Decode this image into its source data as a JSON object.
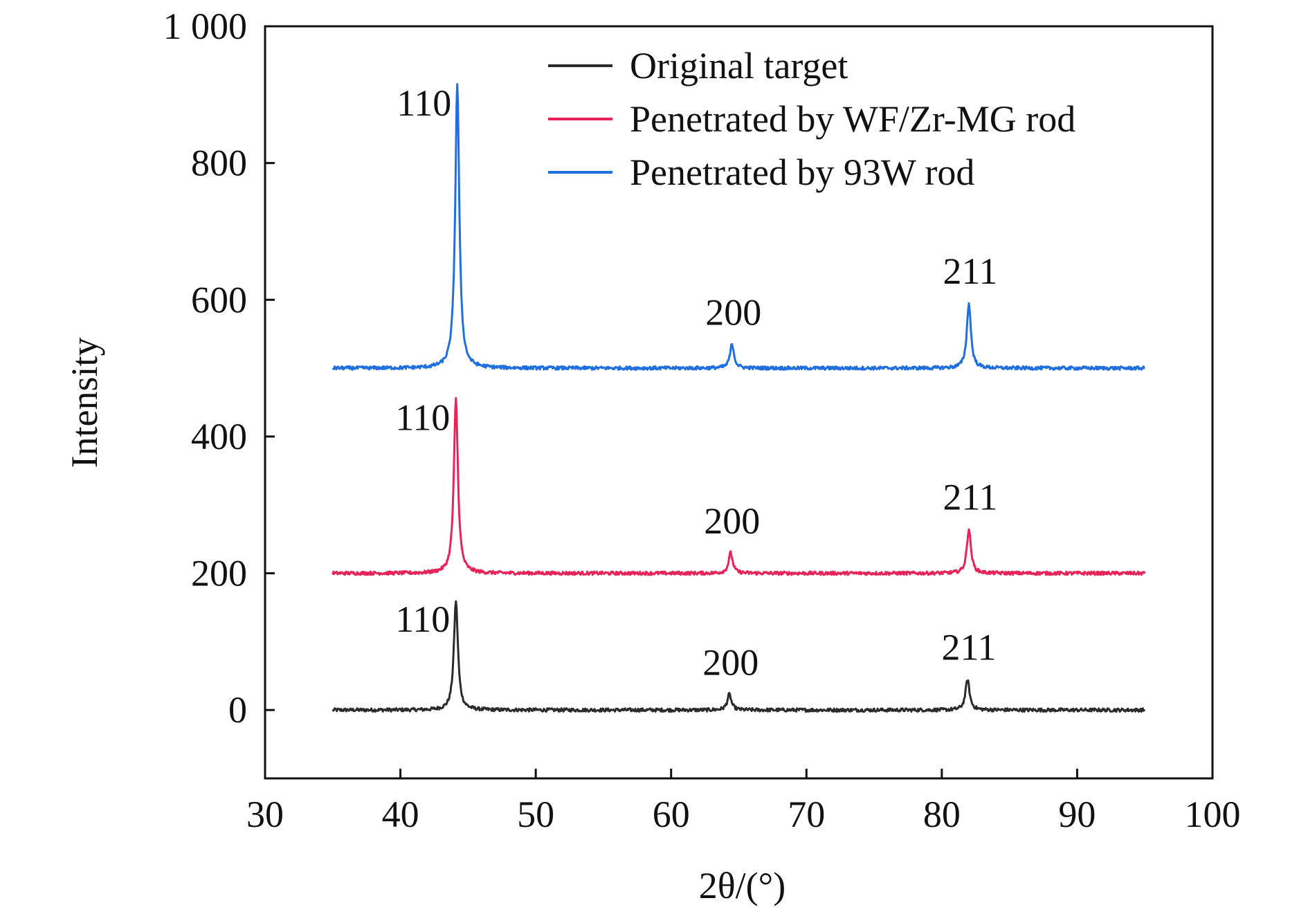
{
  "chart_data": {
    "type": "line",
    "title": "",
    "xlabel": "2θ/(°)",
    "ylabel": "Intensity",
    "xlim": [
      30,
      100
    ],
    "ylim": [
      -100,
      1000
    ],
    "x_ticks": [
      30,
      40,
      50,
      60,
      70,
      80,
      90,
      100
    ],
    "x_tick_labels": [
      "30",
      "40",
      "50",
      "60",
      "70",
      "80",
      "90",
      "100"
    ],
    "y_ticks": [
      0,
      200,
      400,
      600,
      800,
      1000
    ],
    "y_tick_labels": [
      "0",
      "200",
      "400",
      "600",
      "800",
      "1 000"
    ],
    "grid": false,
    "legend_position": "top-right",
    "x_range": [
      35,
      95
    ],
    "series": [
      {
        "name": "Original target",
        "color": "#2b2b2b",
        "baseline": 0,
        "peaks": [
          {
            "x": 44.1,
            "y": 160,
            "label": "110"
          },
          {
            "x": 64.3,
            "y": 23,
            "label": "200"
          },
          {
            "x": 81.9,
            "y": 45,
            "label": "211"
          }
        ]
      },
      {
        "name": "Penetrated by WF/Zr-MG rod",
        "color": "#e8235a",
        "baseline": 200,
        "peaks": [
          {
            "x": 44.1,
            "y": 455,
            "label": "110"
          },
          {
            "x": 64.4,
            "y": 230,
            "label": "200"
          },
          {
            "x": 82.0,
            "y": 265,
            "label": "211"
          }
        ]
      },
      {
        "name": "Penetrated by 93W rod",
        "color": "#1f6fe0",
        "baseline": 500,
        "peaks": [
          {
            "x": 44.2,
            "y": 915,
            "label": "110"
          },
          {
            "x": 64.5,
            "y": 535,
            "label": "200"
          },
          {
            "x": 82.0,
            "y": 595,
            "label": "211"
          }
        ]
      }
    ]
  }
}
